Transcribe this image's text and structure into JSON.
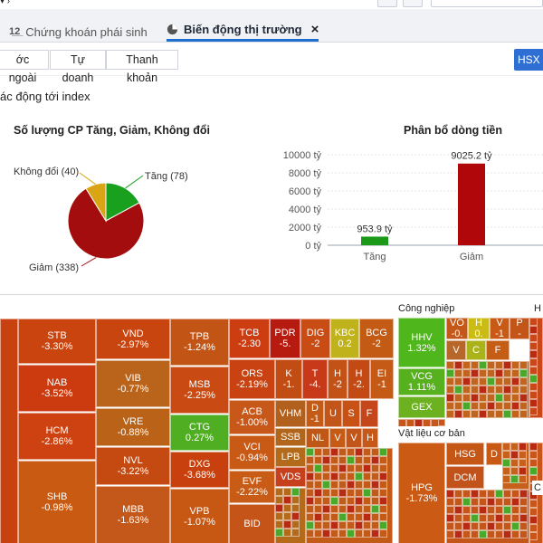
{
  "tabs": [
    {
      "label": "Chứng khoán phái sinh",
      "icon": "list-number-icon"
    },
    {
      "label": "Biến động thị trường",
      "icon": "pie-chart-icon",
      "active": true
    }
  ],
  "close_symbol": "×",
  "filters": [
    "ớc ngoài",
    "Tự doanh",
    "Thanh khoản"
  ],
  "exchange_button": "HSX",
  "section_title": "ác động tới index",
  "pie_chart": {
    "title": "Số lượng CP Tăng, Giảm, Không đổi",
    "labels": {
      "up": "Tăng (78)",
      "down": "Giảm (338)",
      "flat": "Không đổi (40)"
    }
  },
  "bar_chart": {
    "title": "Phân bổ dòng tiền",
    "yticks": [
      "10000 tỷ",
      "8000 tỷ",
      "6000 tỷ",
      "4000 tỷ",
      "2000 tỷ",
      "0 tỷ"
    ],
    "data_labels": [
      "953.9 tỷ",
      "9025.2 tỷ"
    ]
  },
  "chart_data": [
    {
      "type": "pie",
      "title": "Số lượng CP Tăng, Giảm, Không đổi",
      "slices": [
        {
          "label": "Tăng",
          "value": 78,
          "color": "#1aa01f"
        },
        {
          "label": "Giảm",
          "value": 338,
          "color": "#a40d0d"
        },
        {
          "label": "Không đổi",
          "value": 40,
          "color": "#d9a514"
        }
      ]
    },
    {
      "type": "bar",
      "title": "Phân bổ dòng tiền",
      "categories": [
        "Tăng",
        "Giảm"
      ],
      "values": [
        953.9,
        9025.2
      ],
      "colors": [
        "#1a9a18",
        "#b0070b"
      ],
      "ylim": [
        0,
        10000
      ]
    }
  ],
  "treemap": {
    "sectors": {
      "industrial": "Công nghiệp",
      "materials": "Vật liệu cơ bản",
      "cut_h": "H",
      "cut_c": "C"
    },
    "stocks": [
      {
        "t": "STB",
        "p": "-3.30%"
      },
      {
        "t": "NAB",
        "p": "-3.52%"
      },
      {
        "t": "HCM",
        "p": "-2.86%"
      },
      {
        "t": "SHB",
        "p": "-0.98%"
      },
      {
        "t": "VND",
        "p": "-2.97%"
      },
      {
        "t": "VIB",
        "p": "-0.77%"
      },
      {
        "t": "VRE",
        "p": "-0.88%"
      },
      {
        "t": "NVL",
        "p": "-3.22%"
      },
      {
        "t": "MBB",
        "p": "-1.63%"
      },
      {
        "t": "TPB",
        "p": "-1.24%"
      },
      {
        "t": "MSB",
        "p": "-2.25%"
      },
      {
        "t": "CTG",
        "p": "0.27%"
      },
      {
        "t": "DXG",
        "p": "-3.68%"
      },
      {
        "t": "VPB",
        "p": "-1.07%"
      },
      {
        "t": "TCB",
        "p": "-2.30"
      },
      {
        "t": "PDR",
        "p": "-5."
      },
      {
        "t": "DIG",
        "p": "-2"
      },
      {
        "t": "KBC",
        "p": "0.2"
      },
      {
        "t": "BCG",
        "p": "-2"
      },
      {
        "t": "ORS",
        "p": "-2.19%"
      },
      {
        "t": "K",
        "p": "-1."
      },
      {
        "t": "T",
        "p": "-4."
      },
      {
        "t": "H",
        "p": "-2"
      },
      {
        "t": "H",
        "p": "-2."
      },
      {
        "t": "EI",
        "p": "-1"
      },
      {
        "t": "ACB",
        "p": "-1.00%"
      },
      {
        "t": "VHM",
        "p": ""
      },
      {
        "t": "D",
        "p": "-1"
      },
      {
        "t": "U",
        "p": ""
      },
      {
        "t": "S",
        "p": ""
      },
      {
        "t": "F",
        "p": ""
      },
      {
        "t": "VCI",
        "p": "-0.94%"
      },
      {
        "t": "SSB",
        "p": ""
      },
      {
        "t": "NL",
        "p": ""
      },
      {
        "t": "V",
        "p": ""
      },
      {
        "t": "V",
        "p": ""
      },
      {
        "t": "H",
        "p": ""
      },
      {
        "t": "EVF",
        "p": "-2.22%"
      },
      {
        "t": "LPB",
        "p": ""
      },
      {
        "t": "VDS",
        "p": ""
      },
      {
        "t": "BID",
        "p": ""
      },
      {
        "t": "HHV",
        "p": "1.32%"
      },
      {
        "t": "VCG",
        "p": "1.11%"
      },
      {
        "t": "GEX",
        "p": ""
      },
      {
        "t": "VO",
        "p": "-0."
      },
      {
        "t": "H",
        "p": "0."
      },
      {
        "t": "V",
        "p": "-1"
      },
      {
        "t": "P",
        "p": "-"
      },
      {
        "t": "V",
        "p": ""
      },
      {
        "t": "C",
        "p": ""
      },
      {
        "t": "F",
        "p": ""
      },
      {
        "t": "HPG",
        "p": "-1.73%"
      },
      {
        "t": "HSG",
        "p": ""
      },
      {
        "t": "DCM",
        "p": ""
      },
      {
        "t": "D",
        "p": ""
      }
    ]
  }
}
